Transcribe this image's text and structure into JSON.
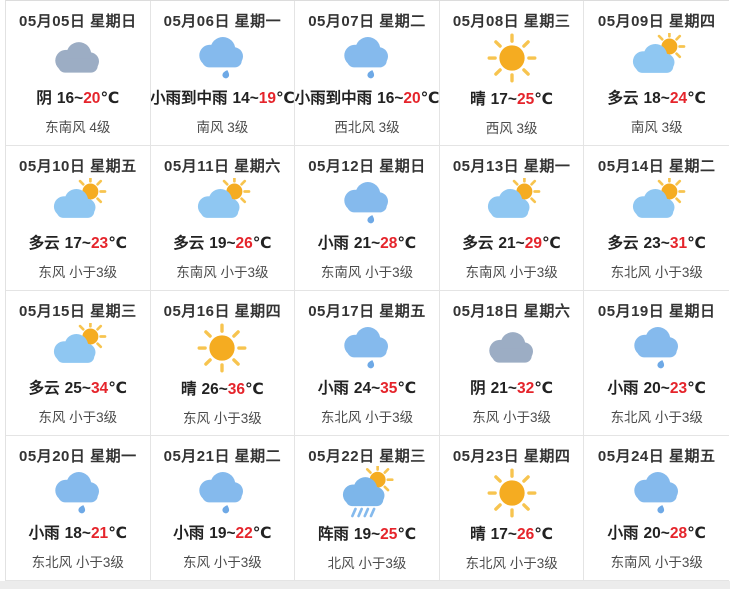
{
  "widget": "weather-forecast-calendar",
  "colors": {
    "accent_red": "#e5242b",
    "cloud_gray": "#9cadc4",
    "cloud_blue": "#85baed",
    "cloud_blue_light": "#8fc7f2",
    "shower_cloud_blue": "#7db6ea",
    "raindrop_blue": "#6ea9e6",
    "sun_core": "#f5ac21",
    "sun_ray": "#f7c44f",
    "border": "#e4e4e4",
    "header_text": "#333333",
    "wind_text": "#4c4c4c",
    "bottom_strip": "#ececec"
  },
  "forecast": {
    "temp_unit": "℃",
    "range_separator": "~",
    "cells": [
      {
        "date": "05月05日",
        "weekday": "星期日",
        "icon": "overcast-cloud-icon",
        "condition": "阴",
        "low": "16",
        "high": "20",
        "wind": "东南风 4级"
      },
      {
        "date": "05月06日",
        "weekday": "星期一",
        "icon": "rain-cloud-icon",
        "condition": "小雨到中雨",
        "low": "14",
        "high": "19",
        "wind": "南风 3级"
      },
      {
        "date": "05月07日",
        "weekday": "星期二",
        "icon": "rain-cloud-icon",
        "condition": "小雨到中雨",
        "low": "16",
        "high": "20",
        "wind": "西北风 3级"
      },
      {
        "date": "05月08日",
        "weekday": "星期三",
        "icon": "sun-icon",
        "condition": "晴",
        "low": "17",
        "high": "25",
        "wind": "西风 3级"
      },
      {
        "date": "05月09日",
        "weekday": "星期四",
        "icon": "sun-behind-cloud-icon",
        "condition": "多云",
        "low": "18",
        "high": "24",
        "wind": "南风 3级"
      },
      {
        "date": "05月10日",
        "weekday": "星期五",
        "icon": "sun-behind-cloud-icon",
        "condition": "多云",
        "low": "17",
        "high": "23",
        "wind": "东风 小于3级"
      },
      {
        "date": "05月11日",
        "weekday": "星期六",
        "icon": "sun-behind-cloud-icon",
        "condition": "多云",
        "low": "19",
        "high": "26",
        "wind": "东南风 小于3级"
      },
      {
        "date": "05月12日",
        "weekday": "星期日",
        "icon": "rain-cloud-icon",
        "condition": "小雨",
        "low": "21",
        "high": "28",
        "wind": "东南风 小于3级"
      },
      {
        "date": "05月13日",
        "weekday": "星期一",
        "icon": "sun-behind-cloud-icon",
        "condition": "多云",
        "low": "21",
        "high": "29",
        "wind": "东南风 小于3级"
      },
      {
        "date": "05月14日",
        "weekday": "星期二",
        "icon": "sun-behind-cloud-icon",
        "condition": "多云",
        "low": "23",
        "high": "31",
        "wind": "东北风 小于3级"
      },
      {
        "date": "05月15日",
        "weekday": "星期三",
        "icon": "sun-behind-cloud-icon",
        "condition": "多云",
        "low": "25",
        "high": "34",
        "wind": "东风 小于3级"
      },
      {
        "date": "05月16日",
        "weekday": "星期四",
        "icon": "sun-icon",
        "condition": "晴",
        "low": "26",
        "high": "36",
        "wind": "东风 小于3级"
      },
      {
        "date": "05月17日",
        "weekday": "星期五",
        "icon": "rain-cloud-icon",
        "condition": "小雨",
        "low": "24",
        "high": "35",
        "wind": "东北风 小于3级"
      },
      {
        "date": "05月18日",
        "weekday": "星期六",
        "icon": "overcast-cloud-icon",
        "condition": "阴",
        "low": "21",
        "high": "32",
        "wind": "东风 小于3级"
      },
      {
        "date": "05月19日",
        "weekday": "星期日",
        "icon": "rain-cloud-icon",
        "condition": "小雨",
        "low": "20",
        "high": "23",
        "wind": "东北风 小于3级"
      },
      {
        "date": "05月20日",
        "weekday": "星期一",
        "icon": "rain-cloud-icon",
        "condition": "小雨",
        "low": "18",
        "high": "21",
        "wind": "东北风 小于3级"
      },
      {
        "date": "05月21日",
        "weekday": "星期二",
        "icon": "rain-cloud-icon",
        "condition": "小雨",
        "low": "19",
        "high": "22",
        "wind": "东风 小于3级"
      },
      {
        "date": "05月22日",
        "weekday": "星期三",
        "icon": "shower-rain-icon",
        "condition": "阵雨",
        "low": "19",
        "high": "25",
        "wind": "北风 小于3级"
      },
      {
        "date": "05月23日",
        "weekday": "星期四",
        "icon": "sun-icon",
        "condition": "晴",
        "low": "17",
        "high": "26",
        "wind": "东北风 小于3级"
      },
      {
        "date": "05月24日",
        "weekday": "星期五",
        "icon": "rain-cloud-icon",
        "condition": "小雨",
        "low": "20",
        "high": "28",
        "wind": "东南风 小于3级"
      }
    ]
  }
}
